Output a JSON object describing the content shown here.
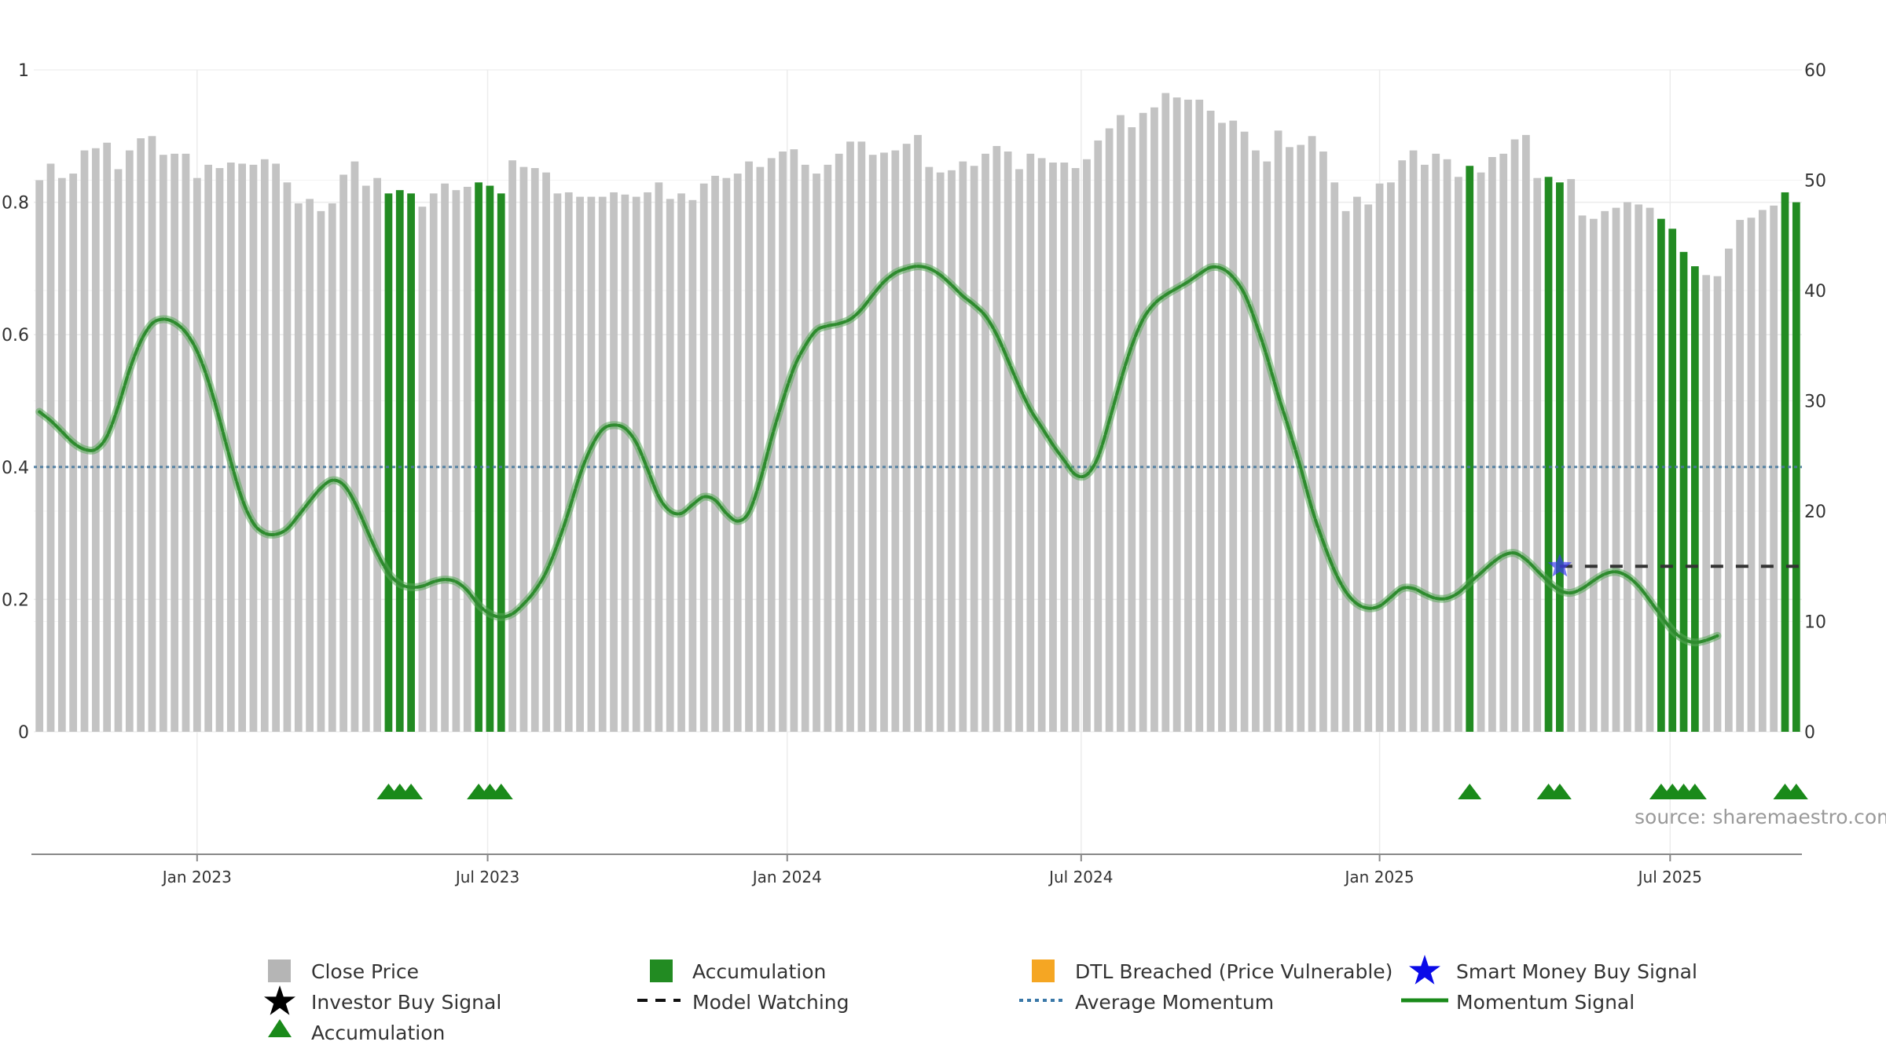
{
  "chart_data": {
    "type": "bar",
    "source": "source: sharemaestro.com",
    "x_ticks": [
      "Jan 2023",
      "Jul 2023",
      "Jan 2024",
      "Jul 2024",
      "Jan 2025",
      "Jul 2025"
    ],
    "left_axis": {
      "ticks": [
        "0",
        "0.2",
        "0.4",
        "0.6",
        "0.8",
        "1"
      ],
      "ylim": [
        0,
        1
      ]
    },
    "right_axis": {
      "ticks": [
        "0",
        "10",
        "20",
        "30",
        "40",
        "50",
        "60"
      ],
      "ylim": [
        0,
        60
      ]
    },
    "colors": {
      "close": "#c3c3c3",
      "accumulation": "#228b22",
      "triangle": "#1a8a1a",
      "momentum": "#2e8b2e",
      "average": "#4a7aa0",
      "star": "#3a3af0",
      "model": "#333333",
      "dtl": "#f5a623"
    },
    "close_prices": [
      50.0,
      51.5,
      50.2,
      50.6,
      52.7,
      52.9,
      53.4,
      51.0,
      52.7,
      53.8,
      54.0,
      52.3,
      52.4,
      52.4,
      50.2,
      51.4,
      51.1,
      51.6,
      51.5,
      51.4,
      51.9,
      51.5,
      49.8,
      47.9,
      48.3,
      47.2,
      47.9,
      50.5,
      51.7,
      49.5,
      50.2,
      48.8,
      49.1,
      48.8,
      47.6,
      48.8,
      49.7,
      49.1,
      49.4,
      49.8,
      49.5,
      48.8,
      51.8,
      51.2,
      51.1,
      50.7,
      48.8,
      48.9,
      48.5,
      48.5,
      48.5,
      48.9,
      48.7,
      48.5,
      48.9,
      49.8,
      48.3,
      48.8,
      48.2,
      49.7,
      50.4,
      50.2,
      50.6,
      51.7,
      51.2,
      52.0,
      52.6,
      52.8,
      51.4,
      50.6,
      51.4,
      52.4,
      53.5,
      53.5,
      52.3,
      52.5,
      52.7,
      53.3,
      54.1,
      51.2,
      50.7,
      50.9,
      51.7,
      51.3,
      52.4,
      53.1,
      52.6,
      51.0,
      52.4,
      52.0,
      51.6,
      51.6,
      51.1,
      51.9,
      53.6,
      54.7,
      55.9,
      54.8,
      56.1,
      56.6,
      57.9,
      57.5,
      57.3,
      57.3,
      56.3,
      55.2,
      55.4,
      54.4,
      52.7,
      51.7,
      54.5,
      53.0,
      53.2,
      54.0,
      52.6,
      49.8,
      47.2,
      48.5,
      47.8,
      49.7,
      49.8,
      51.8,
      52.7,
      51.4,
      52.4,
      51.9,
      50.3,
      51.3,
      50.7,
      52.1,
      52.4,
      53.7,
      54.1,
      50.2,
      50.3,
      49.8,
      50.1,
      46.8,
      46.5,
      47.2,
      47.5,
      48.0,
      47.8,
      47.5,
      46.5,
      45.6,
      43.5,
      42.2,
      41.4,
      41.3,
      43.8,
      46.4,
      46.6,
      47.3,
      47.7,
      48.9,
      48.0
    ],
    "accumulation_bars": [
      31,
      32,
      33,
      39,
      40,
      41,
      127,
      134,
      135,
      144,
      145,
      146,
      147,
      155,
      156
    ],
    "momentum": [
      29.0,
      28.2,
      27.2,
      26.2,
      25.6,
      25.6,
      26.8,
      29.5,
      32.8,
      35.4,
      37.0,
      37.4,
      37.1,
      36.2,
      34.5,
      31.8,
      28.3,
      24.5,
      21.1,
      18.9,
      18.0,
      17.9,
      18.4,
      19.6,
      20.9,
      22.1,
      22.8,
      22.4,
      20.8,
      18.5,
      16.2,
      14.4,
      13.4,
      13.1,
      13.2,
      13.6,
      13.8,
      13.6,
      12.8,
      11.5,
      10.7,
      10.4,
      10.7,
      11.6,
      12.8,
      14.5,
      17.0,
      20.0,
      23.3,
      25.8,
      27.4,
      27.8,
      27.5,
      26.2,
      23.8,
      21.3,
      20.0,
      19.8,
      20.6,
      21.3,
      21.0,
      19.8,
      19.1,
      19.9,
      22.8,
      26.6,
      30.0,
      33.0,
      35.0,
      36.4,
      36.8,
      37.0,
      37.4,
      38.3,
      39.6,
      40.8,
      41.6,
      42.0,
      42.2,
      42.0,
      41.4,
      40.5,
      39.5,
      38.7,
      37.7,
      36.0,
      33.7,
      31.3,
      29.2,
      27.6,
      26.0,
      24.6,
      23.3,
      23.3,
      24.9,
      28.2,
      31.8,
      35.0,
      37.4,
      38.8,
      39.6,
      40.2,
      40.8,
      41.5,
      42.1,
      42.0,
      41.2,
      39.7,
      37.1,
      34.0,
      30.5,
      27.3,
      23.9,
      20.2,
      17.2,
      14.6,
      12.7,
      11.6,
      11.2,
      11.4,
      12.2,
      13.0,
      13.0,
      12.5,
      12.1,
      12.1,
      12.6,
      13.5,
      14.4,
      15.3,
      16.0,
      16.2,
      15.6,
      14.6,
      13.6,
      12.8,
      12.6,
      13.0,
      13.7,
      14.3,
      14.5,
      14.1,
      13.2,
      11.9,
      10.5,
      9.2,
      8.4,
      8.1,
      8.3,
      8.7
    ],
    "average_momentum": 24,
    "star_index": 135,
    "star_value": 15,
    "model_watching_value": 15,
    "model_watching_from": 135,
    "triangles": [
      31,
      32,
      33,
      39,
      40,
      41,
      127,
      134,
      135,
      144,
      145,
      146,
      147,
      155,
      156
    ]
  },
  "legend": [
    {
      "label": "Close Price",
      "icon": "grey-square-icon"
    },
    {
      "label": "Accumulation",
      "icon": "green-square-icon"
    },
    {
      "label": "DTL Breached (Price Vulnerable)",
      "icon": "orange-square-icon"
    },
    {
      "label": "Smart Money Buy Signal",
      "icon": "blue-star-icon"
    },
    {
      "label": "Investor Buy Signal",
      "icon": "black-star-icon"
    },
    {
      "label": "Model Watching",
      "icon": "dashed-line-icon"
    },
    {
      "label": "Average Momentum",
      "icon": "dotted-line-icon"
    },
    {
      "label": "Momentum Signal",
      "icon": "green-line-icon"
    },
    {
      "label": "Accumulation",
      "icon": "green-triangle-icon"
    }
  ]
}
